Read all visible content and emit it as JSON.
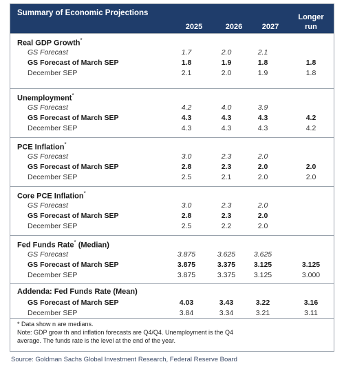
{
  "title": "Summary of Economic Projections",
  "columns": [
    "2025",
    "2026",
    "2027",
    "Longer",
    "run"
  ],
  "sections": [
    {
      "title": "Real GDP Growth",
      "sup": "*",
      "rows": [
        {
          "label": "GS Forecast",
          "style": "it",
          "values": [
            "1.7",
            "2.0",
            "2.1",
            ""
          ]
        },
        {
          "label": "GS Forecast of March SEP",
          "style": "bd",
          "values": [
            "1.8",
            "1.9",
            "1.8",
            "1.8"
          ]
        },
        {
          "label": "December SEP",
          "style": "pl",
          "values": [
            "2.1",
            "2.0",
            "1.9",
            "1.8"
          ]
        }
      ]
    },
    {
      "title": "Unemployment",
      "sup": "*",
      "rows": [
        {
          "label": "GS Forecast",
          "style": "it",
          "values": [
            "4.2",
            "4.0",
            "3.9",
            ""
          ]
        },
        {
          "label": "GS Forecast of March SEP",
          "style": "bd",
          "values": [
            "4.3",
            "4.3",
            "4.3",
            "4.2"
          ]
        },
        {
          "label": "December SEP",
          "style": "pl",
          "values": [
            "4.3",
            "4.3",
            "4.3",
            "4.2"
          ]
        }
      ]
    },
    {
      "title": "PCE Inflation",
      "sup": "*",
      "rows": [
        {
          "label": "GS Forecast",
          "style": "it",
          "values": [
            "3.0",
            "2.3",
            "2.0",
            ""
          ]
        },
        {
          "label": "GS Forecast of March SEP",
          "style": "bd",
          "values": [
            "2.8",
            "2.3",
            "2.0",
            "2.0"
          ]
        },
        {
          "label": "December SEP",
          "style": "pl",
          "values": [
            "2.5",
            "2.1",
            "2.0",
            "2.0"
          ]
        }
      ]
    },
    {
      "title": "Core PCE Inflation",
      "sup": "*",
      "rows": [
        {
          "label": "GS Forecast",
          "style": "it",
          "values": [
            "3.0",
            "2.3",
            "2.0",
            ""
          ]
        },
        {
          "label": "GS Forecast of March SEP",
          "style": "bd",
          "values": [
            "2.8",
            "2.3",
            "2.0",
            ""
          ]
        },
        {
          "label": "December SEP",
          "style": "pl",
          "values": [
            "2.5",
            "2.2",
            "2.0",
            ""
          ]
        }
      ]
    },
    {
      "title": "Fed Funds Rate",
      "sup": "*",
      "suffix": " (Median)",
      "rows": [
        {
          "label": "GS Forecast",
          "style": "it",
          "values": [
            "3.875",
            "3.625",
            "3.625",
            ""
          ]
        },
        {
          "label": "GS Forecast of March SEP",
          "style": "bd",
          "values": [
            "3.875",
            "3.375",
            "3.125",
            "3.125"
          ]
        },
        {
          "label": "December SEP",
          "style": "pl",
          "values": [
            "3.875",
            "3.375",
            "3.125",
            "3.000"
          ]
        }
      ]
    },
    {
      "title": "Addenda: Fed Funds Rate (Mean)",
      "sup": "",
      "rows": [
        {
          "label": "GS Forecast of March SEP",
          "style": "bd",
          "values": [
            "4.03",
            "3.43",
            "3.22",
            "3.16"
          ]
        },
        {
          "label": "December SEP",
          "style": "pl",
          "values": [
            "3.84",
            "3.34",
            "3.21",
            "3.11"
          ]
        }
      ]
    }
  ],
  "notes": [
    "* Data show n are medians.",
    "Note: GDP grow th and inflation forecasts are Q4/Q4.  Unemployment is the Q4",
    "average.  The funds rate is the level at the end of the year."
  ],
  "source": "Source: Goldman Sachs Global Investment Research, Federal Reserve Board"
}
